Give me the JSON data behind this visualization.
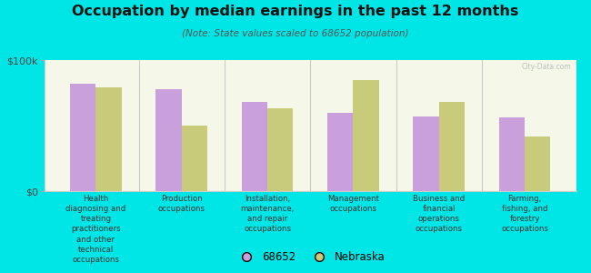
{
  "title": "Occupation by median earnings in the past 12 months",
  "subtitle": "(Note: State values scaled to 68652 population)",
  "categories": [
    "Health\ndiagnosing and\ntreating\npractitioners\nand other\ntechnical\noccupations",
    "Production\noccupations",
    "Installation,\nmaintenance,\nand repair\noccupations",
    "Management\noccupations",
    "Business and\nfinancial\noperations\noccupations",
    "Farming,\nfishing, and\nforestry\noccupations"
  ],
  "values_68652": [
    82000,
    78000,
    68000,
    60000,
    57000,
    56000
  ],
  "values_nebraska": [
    79000,
    50000,
    63000,
    85000,
    68000,
    42000
  ],
  "color_68652": "#c9a0dc",
  "color_nebraska": "#c8cc7a",
  "background_color": "#00e5e5",
  "plot_bg_top": "#e8ecc8",
  "plot_bg_bottom": "#f5f8e8",
  "ylim": [
    0,
    100000
  ],
  "ytick_labels": [
    "$0",
    "$100k"
  ],
  "watermark": "City-Data.com",
  "legend_label_1": "68652",
  "legend_label_2": "Nebraska"
}
